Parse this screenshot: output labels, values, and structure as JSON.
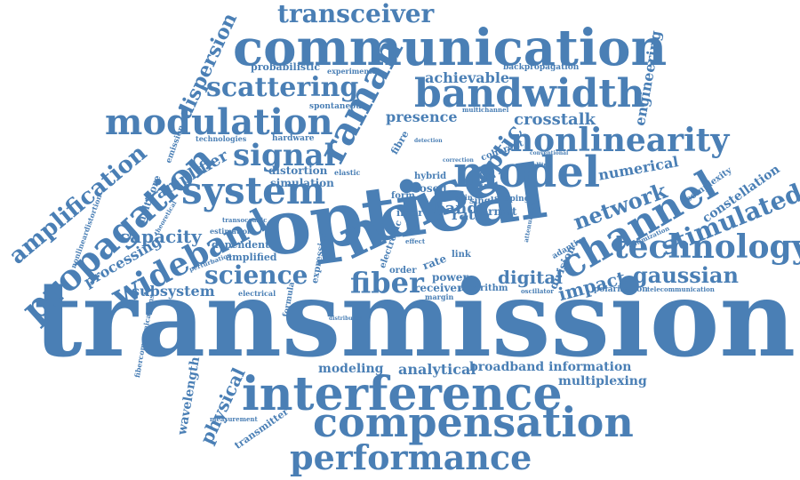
{
  "cloud": {
    "color": "#4a7fb5",
    "words": [
      "transmission",
      "optical",
      "noise",
      "communication",
      "interference",
      "compensation",
      "bandwidth",
      "model",
      "propagation",
      "modulation",
      "nonlinearity",
      "system",
      "channel",
      "technology",
      "performance",
      "transceiver",
      "scattering",
      "raman",
      "wideband",
      "signal",
      "science",
      "fiber",
      "stimulated",
      "amplification",
      "network",
      "gaussian",
      "dispersion",
      "capacity",
      "optic",
      "digital",
      "impact",
      "crosstalk",
      "amplifier",
      "physical",
      "wavelength",
      "achievable",
      "presence",
      "engineering",
      "numerical",
      "constellation",
      "processing",
      "subsystem",
      "analytical",
      "modeling",
      "broadband information",
      "multiplexing",
      "probabilistic",
      "experimental",
      "backpropagation",
      "spontaneous",
      "distortion",
      "simulation",
      "coherent",
      "closed",
      "hybrid",
      "ratio",
      "band",
      "format",
      "power",
      "receiver",
      "algorithm",
      "electronic",
      "expression",
      "hardware",
      "technologies",
      "emission",
      "multicore",
      "amplified",
      "dependent",
      "estimation",
      "electrical",
      "formula",
      "transmitter",
      "fibercommunications",
      "nonlineardistortion",
      "multichannel",
      "complexity",
      "adaptive",
      "division",
      "polarization",
      "telecommunication",
      "optimization",
      "oscillator",
      "order",
      "rate",
      "single",
      "shaping",
      "fibre",
      "elastic",
      "modelling",
      "theoretical",
      "perturbation",
      "transoceanic",
      "measurement",
      "margin",
      "distributed",
      "attenuation",
      "detection",
      "correction",
      "conventional",
      "inter",
      "link",
      "gain",
      "form",
      "effect"
    ]
  }
}
